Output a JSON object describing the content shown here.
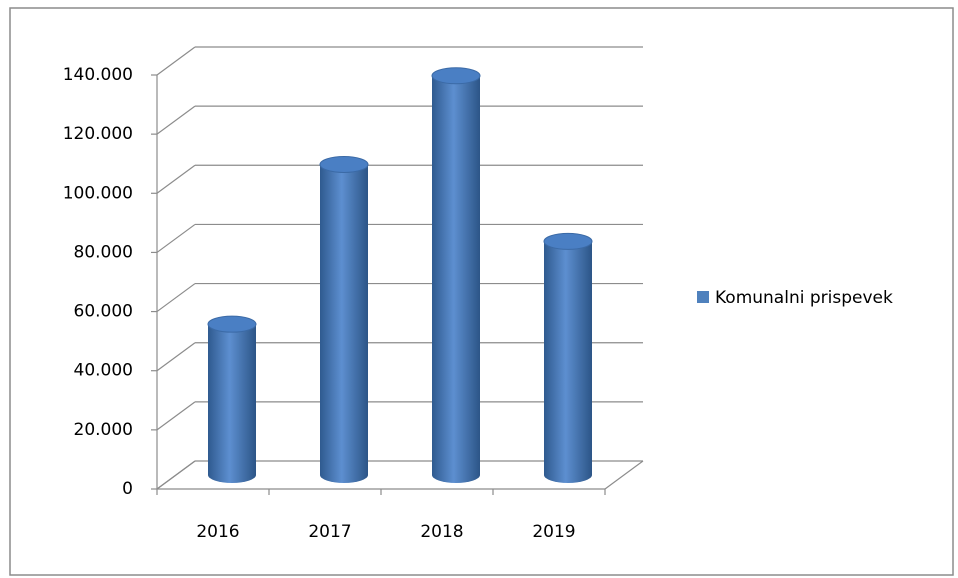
{
  "chart_data": {
    "type": "bar3d",
    "categories": [
      "2016",
      "2017",
      "2018",
      "2019"
    ],
    "series": [
      {
        "name": "Komunalni prispevek",
        "color": "#4f81bd",
        "values": [
          51000,
          105000,
          135000,
          79000
        ]
      }
    ],
    "ylim": [
      0,
      140000
    ],
    "yticks": [
      0,
      {
        "value": 20000,
        "label": "20.000"
      },
      {
        "value": 40000,
        "label": "40.000"
      },
      {
        "value": 60000,
        "label": "60.000"
      },
      {
        "value": 80000,
        "label": "80.000"
      },
      {
        "value": 100000,
        "label": "100.000"
      },
      {
        "value": 120000,
        "label": "120.000"
      },
      {
        "value": 140000,
        "label": "140.000"
      }
    ],
    "grid": true,
    "legend": "right"
  }
}
